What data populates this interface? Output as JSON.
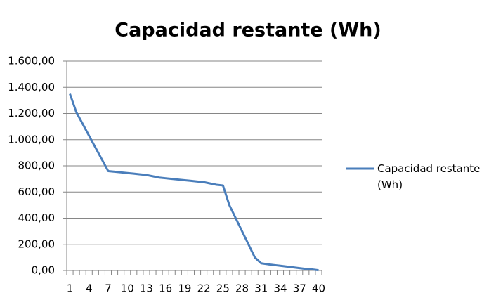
{
  "chart_data": {
    "type": "line",
    "title": "Capacidad restante (Wh)",
    "categories": [
      1,
      null,
      null,
      4,
      null,
      null,
      7,
      null,
      null,
      10,
      null,
      null,
      13,
      null,
      null,
      16,
      null,
      null,
      19,
      null,
      null,
      22,
      null,
      null,
      25,
      null,
      null,
      28,
      null,
      null,
      31,
      null,
      null,
      34,
      null,
      null,
      37,
      null,
      null,
      40
    ],
    "series": [
      {
        "name": "Capacidad restante (Wh)",
        "color": "#4a7ebb",
        "values": [
          1350,
          1210,
          1120,
          1030,
          940,
          850,
          760,
          755,
          750,
          745,
          740,
          735,
          730,
          720,
          710,
          705,
          700,
          695,
          690,
          685,
          680,
          675,
          665,
          655,
          650,
          500,
          400,
          300,
          200,
          100,
          55,
          48,
          42,
          36,
          30,
          24,
          18,
          12,
          8,
          2
        ]
      }
    ],
    "ylim": [
      0,
      1600
    ],
    "yticks": [
      {
        "value": 0,
        "label": "0,00"
      },
      {
        "value": 200,
        "label": "200,00"
      },
      {
        "value": 400,
        "label": "400,00"
      },
      {
        "value": 600,
        "label": "600,00"
      },
      {
        "value": 800,
        "label": "800,00"
      },
      {
        "value": 1000,
        "label": "1.000,00"
      },
      {
        "value": 1200,
        "label": "1.200,00"
      },
      {
        "value": 1400,
        "label": "1.400,00"
      },
      {
        "value": 1600,
        "label": "1.600,00"
      }
    ],
    "grid": true,
    "legend": "right"
  }
}
